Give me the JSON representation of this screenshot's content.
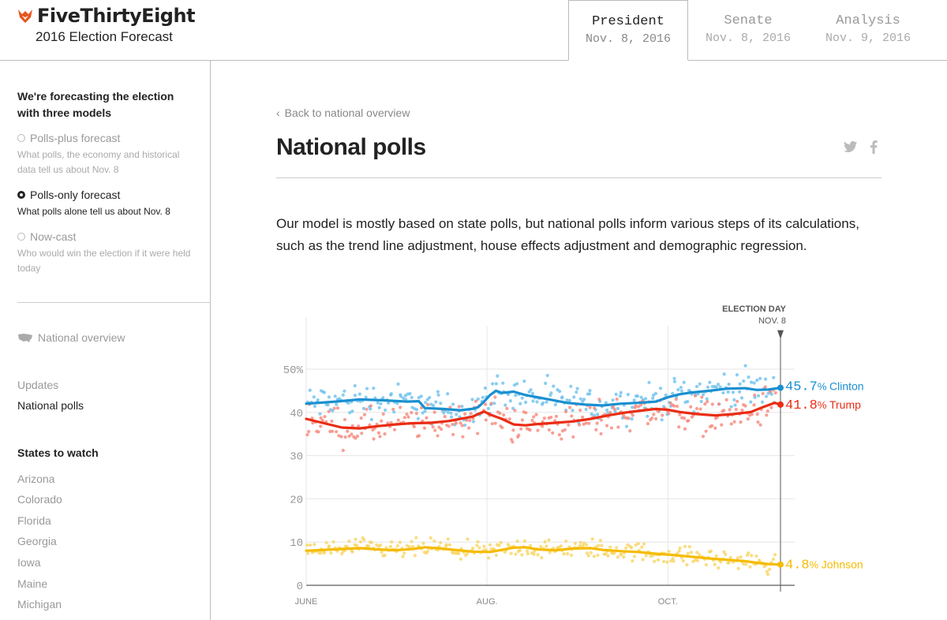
{
  "header": {
    "logo_text": "FiveThirtyEight",
    "subtitle": "2016 Election Forecast",
    "tabs": [
      {
        "name": "President",
        "date": "Nov. 8, 2016",
        "active": true
      },
      {
        "name": "Senate",
        "date": "Nov. 8, 2016",
        "active": false
      },
      {
        "name": "Analysis",
        "date": "Nov. 9, 2016",
        "active": false
      }
    ]
  },
  "sidebar": {
    "heading": "We're forecasting the election with three models",
    "models": [
      {
        "title": "Polls-plus forecast",
        "desc": "What polls, the economy and historical data tell us about Nov. 8",
        "selected": false
      },
      {
        "title": "Polls-only forecast",
        "desc": "What polls alone tell us about Nov. 8",
        "selected": true
      },
      {
        "title": "Now-cast",
        "desc": "Who would win the election if it were held today",
        "selected": false
      }
    ],
    "national_overview": "National overview",
    "links": [
      {
        "label": "Updates",
        "active": false
      },
      {
        "label": "National polls",
        "active": true
      }
    ],
    "states_heading": "States to watch",
    "states": [
      "Arizona",
      "Colorado",
      "Florida",
      "Georgia",
      "Iowa",
      "Maine",
      "Michigan"
    ]
  },
  "main": {
    "back_link": "Back to national overview",
    "title": "National polls",
    "intro": "Our model is mostly based on state polls, but national polls inform various steps of its calculations, such as the trend line adjustment, house effects adjustment and demographic regression."
  },
  "colors": {
    "clinton": "#1a8fd0",
    "trump": "#ea2c13",
    "johnson": "#f5bb00",
    "clinton_dot": "#6cc1ee",
    "trump_dot": "#f5877a",
    "johnson_dot": "#f8d560"
  },
  "chart_data": {
    "type": "line",
    "x_ticks": [
      "JUNE",
      "AUG.",
      "OCT."
    ],
    "y_ticks": [
      "0",
      "10",
      "20",
      "30",
      "40",
      "50%"
    ],
    "ylim": [
      0,
      60
    ],
    "xlim_days": [
      0,
      160
    ],
    "x_tick_days": [
      0,
      61,
      122
    ],
    "annotation": {
      "label": "ELECTION DAY",
      "date": "NOV. 8",
      "day": 160
    },
    "series": [
      {
        "name": "Clinton",
        "final_value": "45.7",
        "color_key": "clinton",
        "trend": [
          [
            0,
            42
          ],
          [
            10,
            42.5
          ],
          [
            18,
            43
          ],
          [
            26,
            42.8
          ],
          [
            34,
            42.5
          ],
          [
            38,
            42.6
          ],
          [
            40,
            41
          ],
          [
            46,
            40.8
          ],
          [
            52,
            40.5
          ],
          [
            56,
            40.8
          ],
          [
            58,
            41.2
          ],
          [
            60,
            42.5
          ],
          [
            62,
            44
          ],
          [
            64,
            45
          ],
          [
            66,
            44.5
          ],
          [
            70,
            44.8
          ],
          [
            74,
            44
          ],
          [
            78,
            43.5
          ],
          [
            82,
            43
          ],
          [
            88,
            42.2
          ],
          [
            94,
            41.8
          ],
          [
            100,
            41.6
          ],
          [
            106,
            42
          ],
          [
            112,
            42.2
          ],
          [
            118,
            42.5
          ],
          [
            122,
            43.5
          ],
          [
            126,
            44.2
          ],
          [
            130,
            44.6
          ],
          [
            136,
            45
          ],
          [
            142,
            45.5
          ],
          [
            148,
            45.6
          ],
          [
            152,
            45.2
          ],
          [
            156,
            45.3
          ],
          [
            160,
            45.7
          ]
        ]
      },
      {
        "name": "Trump",
        "final_value": "41.8",
        "color_key": "trump",
        "trend": [
          [
            0,
            38.5
          ],
          [
            6,
            37.5
          ],
          [
            12,
            36.5
          ],
          [
            18,
            36.3
          ],
          [
            24,
            36.8
          ],
          [
            30,
            37.2
          ],
          [
            36,
            37.5
          ],
          [
            42,
            37.6
          ],
          [
            48,
            38
          ],
          [
            52,
            38.5
          ],
          [
            56,
            39
          ],
          [
            58,
            39.6
          ],
          [
            60,
            40.2
          ],
          [
            62,
            39.5
          ],
          [
            66,
            38.5
          ],
          [
            70,
            37.2
          ],
          [
            74,
            37
          ],
          [
            78,
            37.3
          ],
          [
            84,
            37.6
          ],
          [
            90,
            37.9
          ],
          [
            96,
            38.5
          ],
          [
            102,
            39.3
          ],
          [
            108,
            40
          ],
          [
            114,
            40.5
          ],
          [
            118,
            40.8
          ],
          [
            122,
            40.6
          ],
          [
            126,
            40.1
          ],
          [
            132,
            39.6
          ],
          [
            138,
            39.3
          ],
          [
            144,
            39.6
          ],
          [
            150,
            40.1
          ],
          [
            154,
            41.2
          ],
          [
            158,
            42.2
          ],
          [
            160,
            41.8
          ]
        ]
      },
      {
        "name": "Johnson",
        "final_value": "4.8",
        "color_key": "johnson",
        "trend": [
          [
            0,
            8
          ],
          [
            6,
            8.2
          ],
          [
            12,
            8.4
          ],
          [
            18,
            8.6
          ],
          [
            24,
            8.3
          ],
          [
            30,
            8.1
          ],
          [
            36,
            8.4
          ],
          [
            40,
            8.8
          ],
          [
            44,
            8.6
          ],
          [
            50,
            8.2
          ],
          [
            56,
            7.8
          ],
          [
            62,
            7.7
          ],
          [
            66,
            8.2
          ],
          [
            70,
            8.7
          ],
          [
            74,
            8.8
          ],
          [
            78,
            8.3
          ],
          [
            84,
            8.1
          ],
          [
            90,
            8.5
          ],
          [
            96,
            8.6
          ],
          [
            100,
            8.2
          ],
          [
            106,
            7.9
          ],
          [
            112,
            7.7
          ],
          [
            118,
            7.3
          ],
          [
            124,
            7
          ],
          [
            130,
            6.6
          ],
          [
            136,
            6.2
          ],
          [
            142,
            5.9
          ],
          [
            148,
            5.6
          ],
          [
            152,
            5.2
          ],
          [
            156,
            4.9
          ],
          [
            160,
            4.8
          ]
        ]
      }
    ]
  }
}
